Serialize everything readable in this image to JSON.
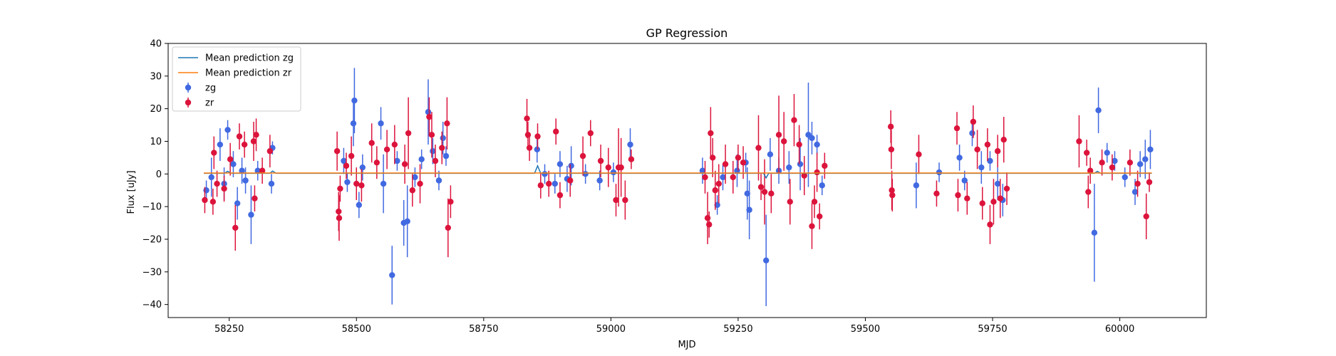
{
  "chart_data": {
    "type": "scatter",
    "title": "GP Regression",
    "xlabel": "MJD",
    "ylabel": "Flux [uJy]",
    "xlim": [
      58130,
      60170
    ],
    "ylim": [
      -44,
      40
    ],
    "xticks": [
      58250,
      58500,
      58750,
      59000,
      59250,
      59500,
      59750,
      60000
    ],
    "yticks": [
      -40,
      -30,
      -20,
      -10,
      0,
      10,
      20,
      30,
      40
    ],
    "grid": false,
    "legend_position": "top-left",
    "colors": {
      "zg": "#4169e1",
      "zr": "#dc143c",
      "mean_zg": "#1f77b4",
      "mean_zr": "#ff7f0e"
    },
    "lines": [
      {
        "name": "Mean prediction zg",
        "color": "#1f77b4",
        "x": [
          58200,
          58240,
          58247,
          58254,
          58330,
          58335,
          58342,
          58460,
          58700,
          58850,
          58856,
          58862,
          58920,
          59060,
          59180,
          59300,
          59305,
          59310,
          59450,
          59950,
          59956,
          59962,
          60063
        ],
        "y": [
          0.2,
          0.2,
          0.8,
          0.2,
          0.2,
          0.9,
          0.2,
          0.2,
          0.2,
          0.2,
          2.5,
          0.2,
          0.2,
          0.2,
          0.2,
          0.2,
          -1.2,
          0.2,
          0.2,
          0.2,
          0.8,
          0.2,
          0.2
        ]
      },
      {
        "name": "Mean prediction zr",
        "color": "#ff7f0e",
        "x": [
          58200,
          60063
        ],
        "y": [
          0.3,
          0.3
        ]
      }
    ],
    "series": [
      {
        "name": "zg",
        "color": "#4169e1",
        "points": [
          [
            58205,
            -5,
            3
          ],
          [
            58215,
            -1,
            6
          ],
          [
            58232,
            9,
            5
          ],
          [
            58240,
            -3,
            5
          ],
          [
            58247,
            13.5,
            3
          ],
          [
            58258,
            3,
            4
          ],
          [
            58266,
            -9,
            5
          ],
          [
            58275,
            1,
            4
          ],
          [
            58282,
            -2,
            4
          ],
          [
            58293,
            -12.5,
            9
          ],
          [
            58306,
            1,
            3
          ],
          [
            58335,
            8,
            2
          ],
          [
            58333,
            -3,
            3
          ],
          [
            58475,
            4,
            4
          ],
          [
            58482,
            -2.5,
            3
          ],
          [
            58494,
            15.5,
            7
          ],
          [
            58496,
            22.5,
            10
          ],
          [
            58505,
            -9.5,
            4
          ],
          [
            58512,
            2,
            4
          ],
          [
            58548,
            15.5,
            5
          ],
          [
            58553,
            -3,
            9
          ],
          [
            58570,
            -31,
            9
          ],
          [
            58580,
            4,
            3
          ],
          [
            58593,
            -15,
            7
          ],
          [
            58600,
            -14.5,
            11
          ],
          [
            58615,
            -1,
            3
          ],
          [
            58628,
            4.5,
            3
          ],
          [
            58641,
            19,
            10
          ],
          [
            58650,
            7,
            4
          ],
          [
            58662,
            -2,
            3
          ],
          [
            58670,
            11,
            5
          ],
          [
            58676,
            5.5,
            3
          ],
          [
            58855,
            7.5,
            4
          ],
          [
            58870,
            0,
            3
          ],
          [
            58890,
            -3,
            3
          ],
          [
            58900,
            3,
            4
          ],
          [
            58914,
            -1.5,
            4
          ],
          [
            58922,
            2.5,
            6
          ],
          [
            58950,
            0,
            3
          ],
          [
            58978,
            -2,
            3
          ],
          [
            59005,
            0.5,
            3
          ],
          [
            59038,
            9,
            5
          ],
          [
            59180,
            1,
            4
          ],
          [
            59209,
            -9.5,
            3
          ],
          [
            59220,
            -1,
            4
          ],
          [
            59248,
            1,
            5
          ],
          [
            59265,
            3.5,
            3
          ],
          [
            59268,
            -6,
            8
          ],
          [
            59272,
            -11,
            9
          ],
          [
            59305,
            -26.5,
            14
          ],
          [
            59313,
            6,
            5
          ],
          [
            59330,
            1,
            4
          ],
          [
            59350,
            2,
            5
          ],
          [
            59372,
            3,
            8
          ],
          [
            59388,
            12,
            16
          ],
          [
            59395,
            11,
            5
          ],
          [
            59405,
            9,
            3
          ],
          [
            59415,
            -3.5,
            3
          ],
          [
            59600,
            -3.5,
            7
          ],
          [
            59645,
            0.5,
            3
          ],
          [
            59685,
            5,
            4
          ],
          [
            59695,
            -2,
            3
          ],
          [
            59710,
            12.5,
            4
          ],
          [
            59728,
            2,
            5
          ],
          [
            59745,
            4,
            3
          ],
          [
            59760,
            -3,
            5
          ],
          [
            59770,
            -8,
            5
          ],
          [
            59950,
            -18,
            15
          ],
          [
            59958,
            19.5,
            7
          ],
          [
            59975,
            6.5,
            3
          ],
          [
            59990,
            4,
            3
          ],
          [
            60010,
            -1,
            3
          ],
          [
            60030,
            -5.5,
            4
          ],
          [
            60040,
            3,
            4
          ],
          [
            60050,
            4.5,
            6
          ],
          [
            60060,
            7.5,
            6
          ]
        ]
      },
      {
        "name": "zr",
        "color": "#dc143c",
        "points": [
          [
            58202,
            -8,
            4
          ],
          [
            58218,
            -8.5,
            4
          ],
          [
            58220,
            6.5,
            5
          ],
          [
            58226,
            -3,
            4
          ],
          [
            58240,
            -4.5,
            4
          ],
          [
            58252,
            4.5,
            5
          ],
          [
            58262,
            -16.5,
            7
          ],
          [
            58270,
            11.5,
            4
          ],
          [
            58280,
            9,
            4
          ],
          [
            58298,
            10,
            6
          ],
          [
            58303,
            12,
            5
          ],
          [
            58300,
            -7.5,
            4
          ],
          [
            58315,
            1,
            4
          ],
          [
            58330,
            7,
            5
          ],
          [
            58462,
            7,
            6
          ],
          [
            58465,
            -11.5,
            6
          ],
          [
            58466,
            -13.5,
            7
          ],
          [
            58468,
            -4.5,
            4
          ],
          [
            58480,
            2.5,
            4
          ],
          [
            58490,
            5.5,
            6
          ],
          [
            58500,
            -3,
            5
          ],
          [
            58510,
            -3.5,
            5
          ],
          [
            58530,
            9.5,
            6
          ],
          [
            58540,
            3.5,
            5
          ],
          [
            58560,
            7.5,
            6
          ],
          [
            58575,
            9,
            6
          ],
          [
            58595,
            3,
            6
          ],
          [
            58602,
            12.5,
            11
          ],
          [
            58610,
            -5,
            5
          ],
          [
            58625,
            -3,
            6
          ],
          [
            58643,
            17.5,
            6
          ],
          [
            58648,
            12,
            7
          ],
          [
            58655,
            4,
            5
          ],
          [
            58668,
            8,
            5
          ],
          [
            58678,
            15.5,
            8
          ],
          [
            58680,
            -16.5,
            9
          ],
          [
            58685,
            -8.5,
            5
          ],
          [
            58835,
            17,
            6
          ],
          [
            58837,
            12,
            4
          ],
          [
            58840,
            8,
            4
          ],
          [
            58856,
            11.5,
            4
          ],
          [
            58862,
            -3.5,
            4
          ],
          [
            58878,
            -3,
            4
          ],
          [
            58892,
            13,
            4
          ],
          [
            58900,
            -6.5,
            4
          ],
          [
            58920,
            -2,
            5
          ],
          [
            58945,
            5.5,
            6
          ],
          [
            58960,
            12.5,
            4
          ],
          [
            58980,
            4,
            5
          ],
          [
            58995,
            2,
            6
          ],
          [
            59010,
            -8,
            5
          ],
          [
            59015,
            2,
            12
          ],
          [
            59020,
            2,
            9
          ],
          [
            59028,
            -8,
            6
          ],
          [
            59040,
            4.5,
            3
          ],
          [
            59185,
            -1,
            5
          ],
          [
            59190,
            -13.5,
            8
          ],
          [
            59193,
            -15.5,
            4
          ],
          [
            59196,
            12.5,
            8
          ],
          [
            59200,
            5,
            6
          ],
          [
            59205,
            -5,
            6
          ],
          [
            59212,
            -3,
            6
          ],
          [
            59225,
            3,
            6
          ],
          [
            59240,
            -1,
            5
          ],
          [
            59250,
            5,
            4
          ],
          [
            59260,
            3.5,
            5
          ],
          [
            59290,
            8,
            10
          ],
          [
            59295,
            -4,
            4
          ],
          [
            59302,
            -5.5,
            10
          ],
          [
            59315,
            -6,
            6
          ],
          [
            59330,
            12,
            12
          ],
          [
            59340,
            10,
            9
          ],
          [
            59352,
            -8.5,
            7
          ],
          [
            59360,
            16.5,
            8
          ],
          [
            59370,
            9,
            6
          ],
          [
            59380,
            -0.5,
            6
          ],
          [
            59395,
            -16,
            7
          ],
          [
            59400,
            -8.5,
            5
          ],
          [
            59405,
            0.5,
            6
          ],
          [
            59410,
            -13,
            4
          ],
          [
            59420,
            2.5,
            4
          ],
          [
            59550,
            14.5,
            5
          ],
          [
            59551,
            7.5,
            6
          ],
          [
            59552,
            -5,
            6
          ],
          [
            59553,
            -6.5,
            5
          ],
          [
            59605,
            6,
            6
          ],
          [
            59640,
            -6,
            4
          ],
          [
            59680,
            14,
            5
          ],
          [
            59682,
            -6.5,
            5
          ],
          [
            59700,
            -7.5,
            5
          ],
          [
            59712,
            16,
            5
          ],
          [
            59720,
            7.5,
            6
          ],
          [
            59730,
            -9,
            5
          ],
          [
            59740,
            9,
            5
          ],
          [
            59745,
            -15.5,
            6
          ],
          [
            59752,
            -8.5,
            7
          ],
          [
            59760,
            7,
            5
          ],
          [
            59765,
            -7.5,
            6
          ],
          [
            59772,
            10.5,
            7
          ],
          [
            59778,
            -4.5,
            5
          ],
          [
            59920,
            10,
            8
          ],
          [
            59935,
            6.5,
            4
          ],
          [
            59938,
            -5.5,
            5
          ],
          [
            59942,
            1,
            4
          ],
          [
            59965,
            3.5,
            4
          ],
          [
            59985,
            2,
            4
          ],
          [
            60020,
            3.5,
            4
          ],
          [
            60035,
            -3,
            4
          ],
          [
            60052,
            -13,
            7
          ],
          [
            60058,
            -2.5,
            3
          ]
        ]
      }
    ],
    "legend": [
      {
        "label": "Mean prediction zg",
        "kind": "line",
        "color": "#1f77b4"
      },
      {
        "label": "Mean prediction zr",
        "kind": "line",
        "color": "#ff7f0e"
      },
      {
        "label": "zg",
        "kind": "errorbar",
        "color": "#4169e1"
      },
      {
        "label": "zr",
        "kind": "errorbar",
        "color": "#dc143c"
      }
    ]
  }
}
